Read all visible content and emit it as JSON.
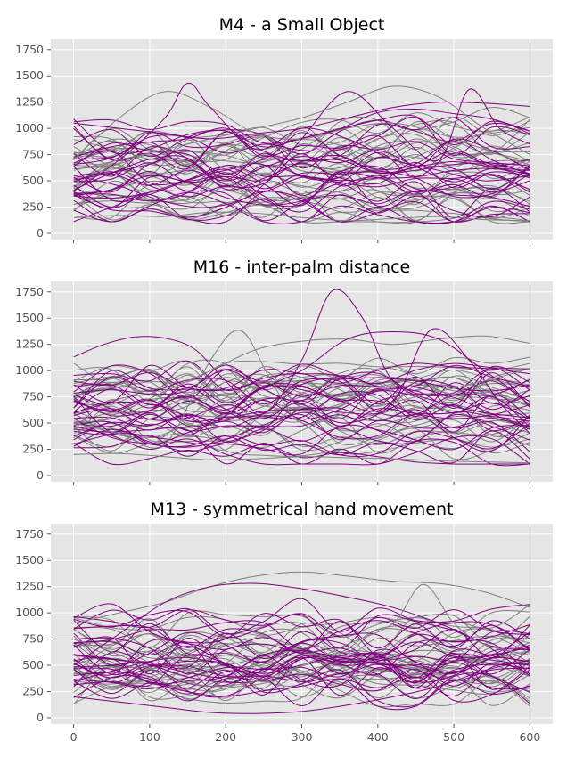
{
  "colors": {
    "panel_bg": "#e5e5e5",
    "grid": "#ffffff",
    "tick_text": "#555555",
    "title_text": "#000000",
    "gray_series": "#808080",
    "purple_series": "#800080"
  },
  "chart_data": [
    {
      "type": "line",
      "title": "M4 - a Small Object",
      "xlabel": "",
      "ylabel": "",
      "xlim": [
        -30,
        630
      ],
      "ylim": [
        -60,
        1850
      ],
      "xticks": [
        0,
        100,
        200,
        300,
        400,
        500,
        600
      ],
      "yticks": [
        0,
        250,
        500,
        750,
        1000,
        1250,
        1500,
        1750
      ],
      "show_xtick_labels": false,
      "grid": true,
      "series_groups": [
        {
          "color": "gray",
          "count": 28,
          "seed": 11
        },
        {
          "color": "purple",
          "count": 28,
          "seed": 23
        }
      ],
      "series": [
        {
          "color": "gray",
          "x": [
            0,
            60,
            120,
            180,
            240,
            300,
            360,
            420,
            480,
            540,
            600
          ],
          "y": [
            150,
            170,
            160,
            200,
            190,
            150,
            120,
            140,
            160,
            130,
            120
          ]
        },
        {
          "color": "gray",
          "x": [
            0,
            60,
            120,
            180,
            240,
            300,
            360,
            420,
            480,
            540,
            600
          ],
          "y": [
            700,
            1100,
            1350,
            1200,
            950,
            900,
            1000,
            1050,
            950,
            800,
            650
          ]
        },
        {
          "color": "gray",
          "x": [
            0,
            60,
            120,
            180,
            240,
            300,
            360,
            420,
            480,
            540,
            600
          ],
          "y": [
            600,
            700,
            800,
            900,
            1000,
            1100,
            1250,
            1400,
            1300,
            1000,
            750
          ]
        },
        {
          "color": "purple",
          "x": [
            0,
            60,
            120,
            150,
            180,
            240,
            300,
            360,
            420,
            480,
            540,
            600
          ],
          "y": [
            400,
            700,
            1100,
            1430,
            1200,
            800,
            1000,
            900,
            700,
            600,
            500,
            550
          ]
        },
        {
          "color": "purple",
          "x": [
            0,
            60,
            120,
            180,
            240,
            300,
            360,
            420,
            480,
            540,
            600
          ],
          "y": [
            1050,
            1000,
            950,
            900,
            950,
            1000,
            1100,
            1200,
            1250,
            1240,
            1210
          ]
        },
        {
          "color": "purple",
          "x": [
            0,
            60,
            120,
            180,
            240,
            300,
            360,
            420,
            480,
            520,
            560,
            600
          ],
          "y": [
            550,
            450,
            300,
            250,
            400,
            900,
            1350,
            1000,
            700,
            1370,
            1000,
            850
          ]
        }
      ]
    },
    {
      "type": "line",
      "title": "M16 - inter-palm distance",
      "xlabel": "",
      "ylabel": "",
      "xlim": [
        -30,
        630
      ],
      "ylim": [
        -60,
        1850
      ],
      "xticks": [
        0,
        100,
        200,
        300,
        400,
        500,
        600
      ],
      "yticks": [
        0,
        250,
        500,
        750,
        1000,
        1250,
        1500,
        1750
      ],
      "show_xtick_labels": false,
      "grid": true,
      "series_groups": [
        {
          "color": "gray",
          "count": 28,
          "seed": 37
        },
        {
          "color": "purple",
          "count": 28,
          "seed": 41
        }
      ],
      "series": [
        {
          "color": "purple",
          "x": [
            0,
            40,
            80,
            120,
            160,
            200,
            250,
            300,
            340,
            380,
            420,
            480,
            540,
            600
          ],
          "y": [
            1130,
            1250,
            1320,
            1310,
            1200,
            900,
            600,
            1100,
            1760,
            1500,
            900,
            700,
            600,
            550
          ]
        },
        {
          "color": "gray",
          "x": [
            0,
            60,
            120,
            180,
            240,
            300,
            360,
            420,
            480,
            540,
            600
          ],
          "y": [
            200,
            210,
            180,
            150,
            160,
            180,
            170,
            160,
            140,
            130,
            120
          ]
        },
        {
          "color": "gray",
          "x": [
            0,
            60,
            120,
            180,
            240,
            300,
            360,
            420,
            480,
            540,
            600
          ],
          "y": [
            400,
            600,
            800,
            1000,
            1200,
            1280,
            1300,
            1250,
            1300,
            1330,
            1260
          ]
        },
        {
          "color": "purple",
          "x": [
            0,
            60,
            120,
            180,
            240,
            300,
            360,
            420,
            480,
            540,
            600
          ],
          "y": [
            600,
            700,
            650,
            500,
            800,
            1000,
            1300,
            1370,
            1300,
            1000,
            700
          ]
        },
        {
          "color": "purple",
          "x": [
            0,
            60,
            120,
            180,
            240,
            300,
            360,
            420,
            470,
            520,
            560,
            600
          ],
          "y": [
            300,
            400,
            350,
            300,
            400,
            600,
            500,
            700,
            1390,
            1100,
            700,
            400
          ]
        },
        {
          "color": "gray",
          "x": [
            0,
            60,
            120,
            180,
            220,
            260,
            300,
            360,
            420,
            480,
            540,
            600
          ],
          "y": [
            500,
            400,
            300,
            1100,
            1380,
            900,
            500,
            600,
            700,
            800,
            900,
            1020
          ]
        }
      ]
    },
    {
      "type": "line",
      "title": "M13 - symmetrical hand movement",
      "xlabel": "",
      "ylabel": "",
      "xlim": [
        -30,
        630
      ],
      "ylim": [
        -60,
        1850
      ],
      "xticks": [
        0,
        100,
        200,
        300,
        400,
        500,
        600
      ],
      "yticks": [
        0,
        250,
        500,
        750,
        1000,
        1250,
        1500,
        1750
      ],
      "show_xtick_labels": true,
      "grid": true,
      "series_groups": [
        {
          "color": "gray",
          "count": 28,
          "seed": 53
        },
        {
          "color": "purple",
          "count": 28,
          "seed": 67
        }
      ],
      "series": [
        {
          "color": "gray",
          "x": [
            0,
            60,
            120,
            180,
            240,
            300,
            360,
            420,
            480,
            540,
            600
          ],
          "y": [
            900,
            1000,
            1100,
            1250,
            1350,
            1390,
            1350,
            1300,
            1280,
            1200,
            1050
          ]
        },
        {
          "color": "purple",
          "x": [
            0,
            60,
            120,
            180,
            240,
            300,
            360,
            420,
            480,
            540,
            600
          ],
          "y": [
            200,
            150,
            100,
            50,
            40,
            60,
            120,
            200,
            300,
            450,
            550
          ]
        },
        {
          "color": "purple",
          "x": [
            0,
            60,
            120,
            180,
            240,
            300,
            360,
            420,
            480,
            540,
            600
          ],
          "y": [
            500,
            800,
            1100,
            1250,
            1280,
            1230,
            1150,
            1050,
            900,
            700,
            400
          ]
        },
        {
          "color": "gray",
          "x": [
            0,
            60,
            120,
            180,
            240,
            300,
            360,
            420,
            460,
            500,
            540,
            600
          ],
          "y": [
            750,
            600,
            400,
            300,
            350,
            500,
            700,
            900,
            1270,
            900,
            700,
            600
          ]
        }
      ]
    }
  ]
}
